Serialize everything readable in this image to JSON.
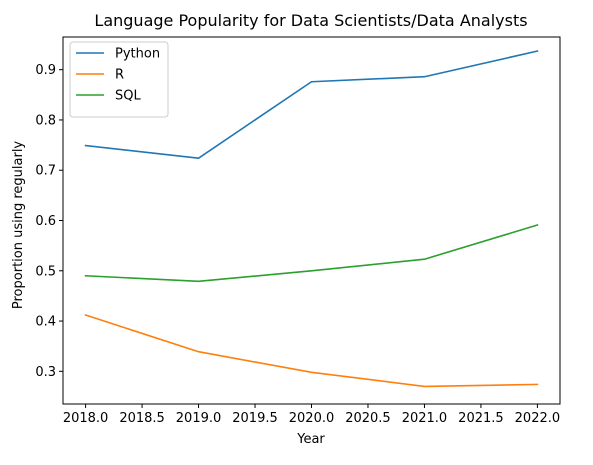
{
  "chart_data": {
    "type": "line",
    "title": "Language Popularity for Data Scientists/Data Analysts",
    "xlabel": "Year",
    "ylabel": "Proportion using regularly",
    "x": [
      2018,
      2019,
      2020,
      2021,
      2022
    ],
    "xlim": [
      2017.8,
      2022.2
    ],
    "ylim": [
      0.235,
      0.965
    ],
    "xticks": [
      "2018.0",
      "2018.5",
      "2019.0",
      "2019.5",
      "2020.0",
      "2020.5",
      "2021.0",
      "2021.5",
      "2022.0"
    ],
    "yticks": [
      "0.3",
      "0.4",
      "0.5",
      "0.6",
      "0.7",
      "0.8",
      "0.9"
    ],
    "grid": false,
    "legend_position": "top-left",
    "series": [
      {
        "name": "Python",
        "color": "#1f77b4",
        "values": [
          0.749,
          0.724,
          0.876,
          0.886,
          0.937
        ]
      },
      {
        "name": "R",
        "color": "#ff7f0e",
        "values": [
          0.412,
          0.339,
          0.298,
          0.27,
          0.274
        ]
      },
      {
        "name": "SQL",
        "color": "#2ca02c",
        "values": [
          0.49,
          0.479,
          0.5,
          0.523,
          0.591
        ]
      }
    ]
  }
}
